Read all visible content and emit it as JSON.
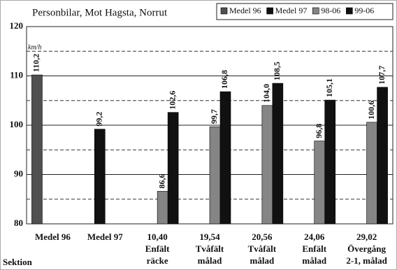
{
  "chart_data": {
    "type": "bar",
    "title": "Personbilar, Mot Hagsta, Norrut",
    "y_label": "km/h",
    "x_label": "Sektion",
    "categories": [
      [
        "Medel 96"
      ],
      [
        "Medel 97"
      ],
      [
        "10,40",
        "Enfält",
        "räcke"
      ],
      [
        "19,54",
        "Tvåfält",
        "målad"
      ],
      [
        "20,56",
        "Tvåfält",
        "målad"
      ],
      [
        "24,06",
        "Enfält",
        "målad"
      ],
      [
        "29,02",
        "Övergång",
        "2-1, målad"
      ]
    ],
    "series": [
      {
        "name": "Medel 96",
        "color": "#505050",
        "values": [
          110.2,
          null,
          null,
          null,
          null,
          null,
          null
        ],
        "value_labels": [
          "110,2",
          null,
          null,
          null,
          null,
          null,
          null
        ]
      },
      {
        "name": "Medel 97",
        "color": "#111111",
        "values": [
          null,
          99.2,
          null,
          null,
          null,
          null,
          null
        ],
        "value_labels": [
          null,
          "99,2",
          null,
          null,
          null,
          null,
          null
        ]
      },
      {
        "name": "98-06",
        "color": "#858585",
        "values": [
          null,
          null,
          86.6,
          99.7,
          104.0,
          96.8,
          100.6
        ],
        "value_labels": [
          null,
          null,
          "86,6",
          "99,7",
          "104,0",
          "96,8",
          "100,6"
        ]
      },
      {
        "name": "99-06",
        "color": "#111111",
        "values": [
          null,
          null,
          102.6,
          106.8,
          108.5,
          105.1,
          107.7
        ],
        "value_labels": [
          null,
          null,
          "102,6",
          "106,8",
          "108,5",
          "105,1",
          "107,7"
        ]
      }
    ],
    "ylim": [
      80,
      120
    ],
    "yticks": [
      80,
      90,
      100,
      110,
      120
    ],
    "minor_yticks": [
      85,
      95,
      105,
      115
    ],
    "grid": true
  }
}
